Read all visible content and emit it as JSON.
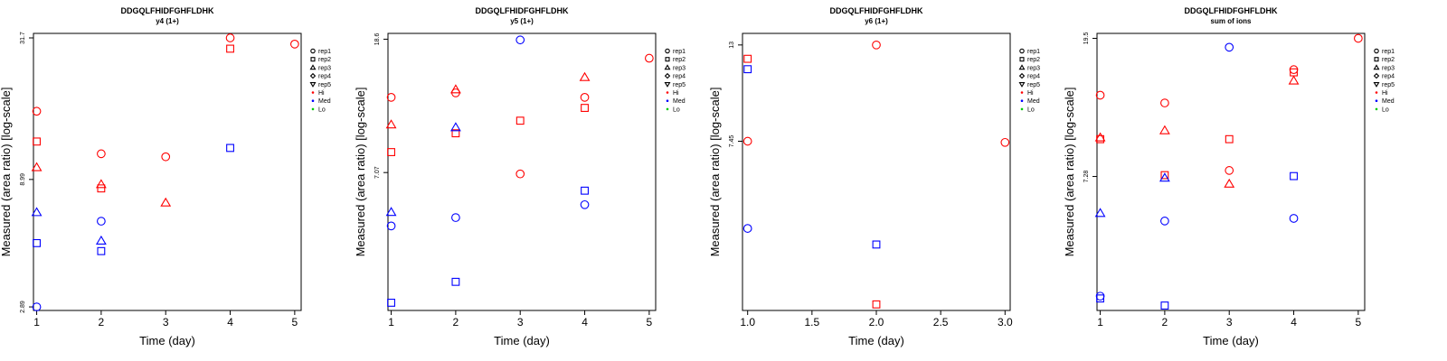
{
  "legend": {
    "shapes": [
      {
        "label": "rep1",
        "shape": "circle"
      },
      {
        "label": "rep2",
        "shape": "square"
      },
      {
        "label": "rep3",
        "shape": "triangle-up"
      },
      {
        "label": "rep4",
        "shape": "diamond"
      },
      {
        "label": "rep5",
        "shape": "triangle-down"
      }
    ],
    "colors": [
      {
        "label": "Hi",
        "color": "#ff0000"
      },
      {
        "label": "Med",
        "color": "#0000ff"
      },
      {
        "label": "Lo",
        "color": "#00cc00"
      }
    ]
  },
  "chart_data": [
    {
      "type": "scatter",
      "title": "DDGQLFHIDFGHFLDHK",
      "subtitle": "y4 (1+)",
      "xlabel": "Time (day)",
      "ylabel": "Measured (area ratio) [log-scale]",
      "log_y": true,
      "xlim": [
        0.95,
        5.1
      ],
      "x_ticks": [
        1,
        2,
        3,
        4,
        5
      ],
      "x_tick_labels": [
        "1",
        "2",
        "3",
        "4",
        "5"
      ],
      "ylim": [
        2.8,
        33.0
      ],
      "y_ticks": [
        2.89,
        8.99,
        31.7
      ],
      "y_tick_labels": [
        "2.89",
        "8.99",
        "31.7"
      ],
      "legend_position": "right",
      "points": [
        {
          "x": 1,
          "y": 16.5,
          "shape": "circle",
          "group": "Hi"
        },
        {
          "x": 1,
          "y": 12.6,
          "shape": "square",
          "group": "Hi"
        },
        {
          "x": 1,
          "y": 10.0,
          "shape": "triangle-up",
          "group": "Hi"
        },
        {
          "x": 1,
          "y": 6.7,
          "shape": "triangle-up",
          "group": "Med"
        },
        {
          "x": 1,
          "y": 5.1,
          "shape": "square",
          "group": "Med"
        },
        {
          "x": 1,
          "y": 2.89,
          "shape": "circle",
          "group": "Med"
        },
        {
          "x": 2,
          "y": 11.3,
          "shape": "circle",
          "group": "Hi"
        },
        {
          "x": 2,
          "y": 8.6,
          "shape": "triangle-up",
          "group": "Hi"
        },
        {
          "x": 2,
          "y": 8.3,
          "shape": "square",
          "group": "Hi"
        },
        {
          "x": 2,
          "y": 6.2,
          "shape": "circle",
          "group": "Med"
        },
        {
          "x": 2,
          "y": 5.2,
          "shape": "triangle-up",
          "group": "Med"
        },
        {
          "x": 2,
          "y": 4.75,
          "shape": "square",
          "group": "Med"
        },
        {
          "x": 3,
          "y": 11.0,
          "shape": "circle",
          "group": "Hi"
        },
        {
          "x": 3,
          "y": 7.3,
          "shape": "triangle-up",
          "group": "Hi"
        },
        {
          "x": 4,
          "y": 31.7,
          "shape": "circle",
          "group": "Hi"
        },
        {
          "x": 4,
          "y": 28.8,
          "shape": "square",
          "group": "Hi"
        },
        {
          "x": 4,
          "y": 11.9,
          "shape": "square",
          "group": "Med"
        },
        {
          "x": 5,
          "y": 30.0,
          "shape": "circle",
          "group": "Hi"
        }
      ]
    },
    {
      "type": "scatter",
      "title": "DDGQLFHIDFGHFLDHK",
      "subtitle": "y5 (1+)",
      "xlabel": "Time (day)",
      "ylabel": "Measured (area ratio) [log-scale]",
      "log_y": true,
      "xlim": [
        0.95,
        5.1
      ],
      "x_ticks": [
        1,
        2,
        3,
        4,
        5
      ],
      "x_tick_labels": [
        "1",
        "2",
        "3",
        "4",
        "5"
      ],
      "ylim": [
        2.6,
        19.4
      ],
      "y_ticks": [
        7.07,
        18.6
      ],
      "y_tick_labels": [
        "7.07",
        "18.6"
      ],
      "legend_position": "right",
      "points": [
        {
          "x": 1,
          "y": 12.2,
          "shape": "circle",
          "group": "Hi"
        },
        {
          "x": 1,
          "y": 10.0,
          "shape": "triangle-up",
          "group": "Hi"
        },
        {
          "x": 1,
          "y": 8.2,
          "shape": "square",
          "group": "Hi"
        },
        {
          "x": 1,
          "y": 5.3,
          "shape": "triangle-up",
          "group": "Med"
        },
        {
          "x": 1,
          "y": 4.8,
          "shape": "circle",
          "group": "Med"
        },
        {
          "x": 1,
          "y": 2.75,
          "shape": "square",
          "group": "Med"
        },
        {
          "x": 2,
          "y": 12.9,
          "shape": "triangle-up",
          "group": "Hi"
        },
        {
          "x": 2,
          "y": 12.6,
          "shape": "circle",
          "group": "Hi"
        },
        {
          "x": 2,
          "y": 9.4,
          "shape": "square",
          "group": "Hi"
        },
        {
          "x": 2,
          "y": 9.8,
          "shape": "triangle-up",
          "group": "Med"
        },
        {
          "x": 2,
          "y": 5.1,
          "shape": "circle",
          "group": "Med"
        },
        {
          "x": 2,
          "y": 3.2,
          "shape": "square",
          "group": "Med"
        },
        {
          "x": 3,
          "y": 18.5,
          "shape": "circle",
          "group": "Med"
        },
        {
          "x": 3,
          "y": 10.3,
          "shape": "square",
          "group": "Hi"
        },
        {
          "x": 3,
          "y": 7.0,
          "shape": "circle",
          "group": "Hi"
        },
        {
          "x": 4,
          "y": 14.1,
          "shape": "triangle-up",
          "group": "Hi"
        },
        {
          "x": 4,
          "y": 12.2,
          "shape": "circle",
          "group": "Hi"
        },
        {
          "x": 4,
          "y": 11.3,
          "shape": "square",
          "group": "Hi"
        },
        {
          "x": 4,
          "y": 6.2,
          "shape": "square",
          "group": "Med"
        },
        {
          "x": 4,
          "y": 5.6,
          "shape": "circle",
          "group": "Med"
        },
        {
          "x": 5,
          "y": 16.2,
          "shape": "circle",
          "group": "Hi"
        }
      ]
    },
    {
      "type": "scatter",
      "title": "DDGQLFHIDFGHFLDHK",
      "subtitle": "y6 (1+)",
      "xlabel": "Time (day)",
      "ylabel": "Measured (area ratio) [log-scale]",
      "log_y": true,
      "xlim": [
        0.96,
        3.04
      ],
      "x_ticks": [
        1.0,
        1.5,
        2.0,
        2.5,
        3.0
      ],
      "x_tick_labels": [
        "1.0",
        "1.5",
        "2.0",
        "2.5",
        "3.0"
      ],
      "ylim": [
        2.8,
        13.9
      ],
      "y_ticks": [
        7.45,
        13
      ],
      "y_tick_labels": [
        "7.45",
        "13"
      ],
      "legend_position": "right",
      "points": [
        {
          "x": 1,
          "y": 12.0,
          "shape": "square",
          "group": "Hi"
        },
        {
          "x": 1,
          "y": 11.3,
          "shape": "square",
          "group": "Med"
        },
        {
          "x": 1,
          "y": 7.45,
          "shape": "circle",
          "group": "Hi"
        },
        {
          "x": 1,
          "y": 4.5,
          "shape": "circle",
          "group": "Med"
        },
        {
          "x": 2,
          "y": 13.0,
          "shape": "circle",
          "group": "Hi"
        },
        {
          "x": 2,
          "y": 4.1,
          "shape": "square",
          "group": "Med"
        },
        {
          "x": 2,
          "y": 2.9,
          "shape": "square",
          "group": "Hi"
        },
        {
          "x": 3,
          "y": 7.4,
          "shape": "circle",
          "group": "Hi"
        }
      ]
    },
    {
      "type": "scatter",
      "title": "DDGQLFHIDFGHFLDHK",
      "subtitle": "sum of ions",
      "xlabel": "Time (day)",
      "ylabel": "Measured (area ratio) [log-scale]",
      "log_y": true,
      "xlim": [
        0.95,
        5.1
      ],
      "x_ticks": [
        1,
        2,
        3,
        4,
        5
      ],
      "x_tick_labels": [
        "1",
        "2",
        "3",
        "4",
        "5"
      ],
      "ylim": [
        2.8,
        20.2
      ],
      "y_ticks": [
        7.28,
        19.5
      ],
      "y_tick_labels": [
        "7.28",
        "19.5"
      ],
      "legend_position": "right",
      "points": [
        {
          "x": 1,
          "y": 13.0,
          "shape": "circle",
          "group": "Hi"
        },
        {
          "x": 1,
          "y": 9.6,
          "shape": "triangle-up",
          "group": "Hi"
        },
        {
          "x": 1,
          "y": 9.5,
          "shape": "square",
          "group": "Hi"
        },
        {
          "x": 1,
          "y": 5.6,
          "shape": "triangle-up",
          "group": "Med"
        },
        {
          "x": 1,
          "y": 3.1,
          "shape": "circle",
          "group": "Med"
        },
        {
          "x": 1,
          "y": 3.05,
          "shape": "square",
          "group": "Med"
        },
        {
          "x": 2,
          "y": 12.3,
          "shape": "circle",
          "group": "Hi"
        },
        {
          "x": 2,
          "y": 10.1,
          "shape": "triangle-up",
          "group": "Hi"
        },
        {
          "x": 2,
          "y": 7.35,
          "shape": "square",
          "group": "Hi"
        },
        {
          "x": 2,
          "y": 7.2,
          "shape": "triangle-up",
          "group": "Med"
        },
        {
          "x": 2,
          "y": 5.3,
          "shape": "circle",
          "group": "Med"
        },
        {
          "x": 2,
          "y": 2.9,
          "shape": "square",
          "group": "Med"
        },
        {
          "x": 3,
          "y": 18.3,
          "shape": "circle",
          "group": "Med"
        },
        {
          "x": 3,
          "y": 9.5,
          "shape": "square",
          "group": "Hi"
        },
        {
          "x": 3,
          "y": 7.6,
          "shape": "circle",
          "group": "Hi"
        },
        {
          "x": 3,
          "y": 6.9,
          "shape": "triangle-up",
          "group": "Hi"
        },
        {
          "x": 4,
          "y": 15.6,
          "shape": "circle",
          "group": "Hi"
        },
        {
          "x": 4,
          "y": 15.3,
          "shape": "square",
          "group": "Hi"
        },
        {
          "x": 4,
          "y": 14.4,
          "shape": "triangle-up",
          "group": "Hi"
        },
        {
          "x": 4,
          "y": 7.3,
          "shape": "square",
          "group": "Med"
        },
        {
          "x": 4,
          "y": 5.4,
          "shape": "circle",
          "group": "Med"
        },
        {
          "x": 5,
          "y": 19.5,
          "shape": "circle",
          "group": "Hi"
        }
      ]
    }
  ]
}
